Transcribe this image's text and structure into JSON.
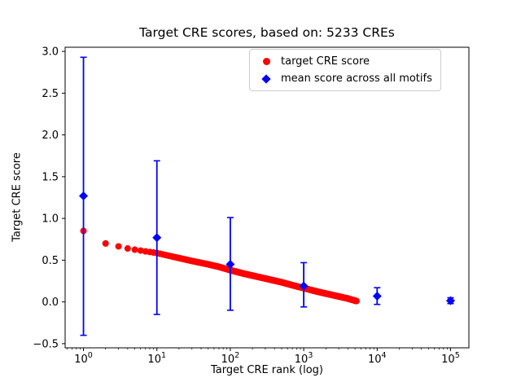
{
  "chart_data": {
    "type": "scatter",
    "title": "Target CRE scores, based on: 5233 CREs",
    "xlabel": "Target CRE rank (log)",
    "ylabel": "Target CRE score",
    "x_scale": "log",
    "xlim_log10": [
      -0.25,
      5.25
    ],
    "ylim": [
      -0.55,
      3.05
    ],
    "y_ticks": [
      -0.5,
      0.0,
      0.5,
      1.0,
      1.5,
      2.0,
      2.5,
      3.0
    ],
    "x_tick_exponents": [
      0,
      1,
      2,
      3,
      4,
      5
    ],
    "grid": false,
    "legend_position": "upper right",
    "legend": [
      {
        "label": "target CRE score",
        "marker": "circle",
        "color": "#ff0000"
      },
      {
        "label": "mean score across all motifs",
        "marker": "diamond",
        "color": "#0000ff"
      }
    ],
    "series": [
      {
        "name": "target CRE score",
        "type": "scatter-curve",
        "color": "#ff0000",
        "marker": "circle",
        "n_points": 5233,
        "anchors": [
          [
            1,
            0.85
          ],
          [
            2,
            0.7
          ],
          [
            3,
            0.665
          ],
          [
            4,
            0.64
          ],
          [
            5,
            0.625
          ],
          [
            6,
            0.615
          ],
          [
            7,
            0.605
          ],
          [
            8,
            0.598
          ],
          [
            10,
            0.585
          ],
          [
            15,
            0.55
          ],
          [
            20,
            0.525
          ],
          [
            30,
            0.49
          ],
          [
            50,
            0.45
          ],
          [
            70,
            0.42
          ],
          [
            100,
            0.38
          ],
          [
            150,
            0.34
          ],
          [
            200,
            0.315
          ],
          [
            300,
            0.28
          ],
          [
            500,
            0.235
          ],
          [
            700,
            0.2
          ],
          [
            1000,
            0.165
          ],
          [
            1500,
            0.125
          ],
          [
            2000,
            0.1
          ],
          [
            3000,
            0.065
          ],
          [
            4000,
            0.04
          ],
          [
            5233,
            0.01
          ]
        ]
      },
      {
        "name": "mean score across all motifs",
        "type": "errorbar",
        "color": "#0000ff",
        "marker": "diamond",
        "points": [
          {
            "x": 1,
            "y": 1.27,
            "ylo": -0.4,
            "yhi": 2.93
          },
          {
            "x": 10,
            "y": 0.77,
            "ylo": -0.15,
            "yhi": 1.69
          },
          {
            "x": 100,
            "y": 0.45,
            "ylo": -0.1,
            "yhi": 1.01
          },
          {
            "x": 1000,
            "y": 0.19,
            "ylo": -0.06,
            "yhi": 0.47
          },
          {
            "x": 10000,
            "y": 0.07,
            "ylo": -0.03,
            "yhi": 0.17
          },
          {
            "x": 100000,
            "y": 0.015,
            "ylo": -0.02,
            "yhi": 0.05
          }
        ]
      }
    ]
  }
}
